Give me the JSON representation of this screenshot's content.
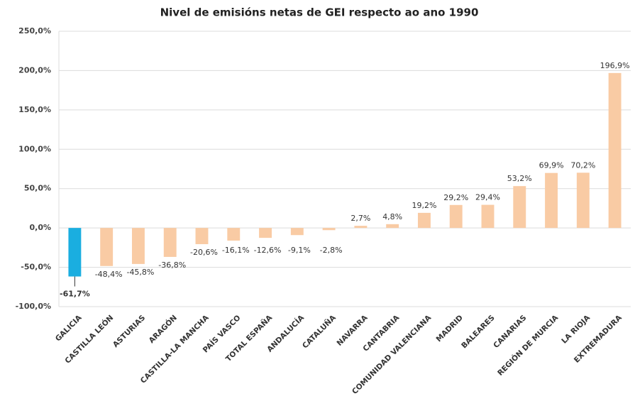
{
  "chart_data": {
    "type": "bar",
    "title": "Nivel de emisións netas de GEI respecto ao ano 1990",
    "categories": [
      "GALICIA",
      "CASTILLA LEÓN",
      "ASTURIAS",
      "ARAGÓN",
      "CASTILLA-LA MANCHA",
      "PAÍS VASCO",
      "TOTAL ESPAÑA",
      "ANDALUCÍA",
      "CATALUÑA",
      "NAVARRA",
      "CANTABRIA",
      "COMUNIDAD VALENCIANA",
      "MADRID",
      "BALEARES",
      "CANARIAS",
      "REGIÓN DE MURCIA",
      "LA RIOJA",
      "EXTREMADURA"
    ],
    "values": [
      -61.7,
      -48.4,
      -45.8,
      -36.8,
      -20.6,
      -16.1,
      -12.6,
      -9.1,
      -2.8,
      2.7,
      4.8,
      19.2,
      29.2,
      29.4,
      53.2,
      69.9,
      70.2,
      196.9
    ],
    "value_labels": [
      "-61,7%",
      "-48,4%",
      "-45,8%",
      "-36,8%",
      "-20,6%",
      "-16,1%",
      "-12,6%",
      "-9,1%",
      "-2,8%",
      "2,7%",
      "4,8%",
      "19,2%",
      "29,2%",
      "29,4%",
      "53,2%",
      "69,9%",
      "70,2%",
      "196,9%"
    ],
    "colors": [
      "#1aaee0",
      "#f9cba4",
      "#f9cba4",
      "#f9cba4",
      "#f9cba4",
      "#f9cba4",
      "#f9cba4",
      "#f9cba4",
      "#f9cba4",
      "#f9cba4",
      "#f9cba4",
      "#f9cba4",
      "#f9cba4",
      "#f9cba4",
      "#f9cba4",
      "#f9cba4",
      "#f9cba4",
      "#f9cba4"
    ],
    "ylim": [
      -100,
      250
    ],
    "yticks": [
      {
        "value": -100,
        "label": "-100,0%"
      },
      {
        "value": -50,
        "label": "-50,0%"
      },
      {
        "value": 0,
        "label": "0,0%"
      },
      {
        "value": 50,
        "label": "50,0%"
      },
      {
        "value": 100,
        "label": "100,0%"
      },
      {
        "value": 150,
        "label": "150,0%"
      },
      {
        "value": 200,
        "label": "200,0%"
      },
      {
        "value": 250,
        "label": "250,0%"
      }
    ],
    "grid": true
  }
}
